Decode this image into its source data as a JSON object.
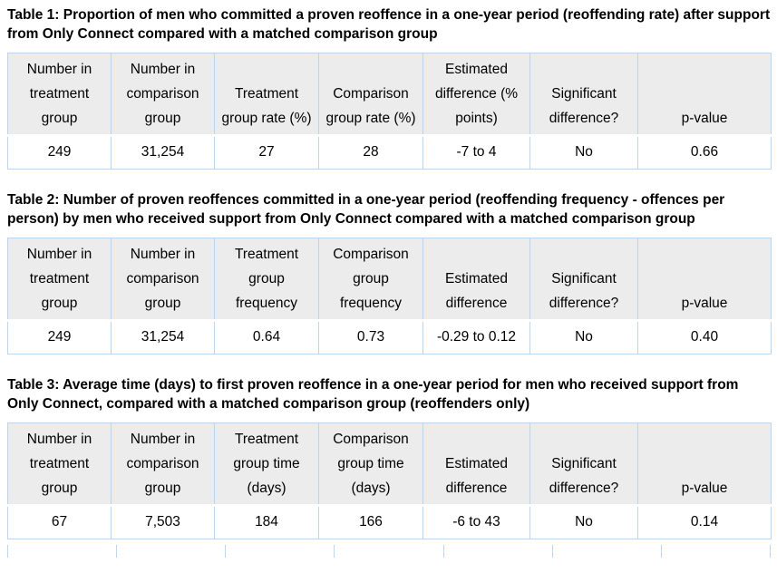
{
  "colors": {
    "table-border": "#bcd5ea",
    "header-bg": "#ececec",
    "row-bg": "#ffffff",
    "text": "#000000"
  },
  "tables": [
    {
      "title": "Table 1: Proportion of men who committed a proven reoffence in a one-year period (reoffending rate) after support from Only Connect compared with a matched comparison group",
      "headers": [
        "Number in treatment group",
        "Number in comparison group",
        "Treatment group rate (%)",
        "Comparison group rate (%)",
        "Estimated difference (% points)",
        "Significant difference?",
        "p-value"
      ],
      "row": [
        "249",
        "31,254",
        "27",
        "28",
        "-7 to 4",
        "No",
        "0.66"
      ]
    },
    {
      "title": "Table 2: Number of proven reoffences committed in a one-year period (reoffending frequency - offences per person) by men who received support from Only Connect compared with a matched comparison group",
      "headers": [
        "Number in treatment group",
        "Number in comparison group",
        "Treatment group frequency",
        "Comparison group frequency",
        "Estimated difference",
        "Significant difference?",
        "p-value"
      ],
      "row": [
        "249",
        "31,254",
        "0.64",
        "0.73",
        "-0.29 to 0.12",
        "No",
        "0.40"
      ]
    },
    {
      "title": "Table 3: Average time (days) to first proven reoffence in a one-year period for men who received support from Only Connect, compared with a matched comparison group (reoffenders only)",
      "headers": [
        "Number in treatment group",
        "Number in comparison group",
        "Treatment group time (days)",
        "Comparison group time (days)",
        "Estimated difference",
        "Significant difference?",
        "p-value"
      ],
      "row": [
        "67",
        "7,503",
        "184",
        "166",
        "-6 to 43",
        "No",
        "0.14"
      ]
    }
  ]
}
